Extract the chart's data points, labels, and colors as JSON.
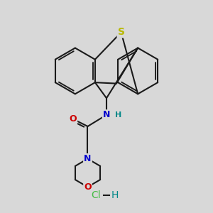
{
  "background_color": "#d8d8d8",
  "line_color": "#1a1a1a",
  "S_color": "#b8b800",
  "N_color": "#0000cc",
  "O_color": "#cc0000",
  "H_color": "#008888",
  "Cl_color": "#44bb44",
  "line_width": 1.5,
  "fig_size": [
    3.0,
    3.0
  ],
  "dpi": 100,
  "S_label": "S",
  "N_label": "N",
  "O_label": "O",
  "H_label": "H",
  "Cl_label": "Cl",
  "font_size_atom": 9,
  "font_size_hcl": 10
}
